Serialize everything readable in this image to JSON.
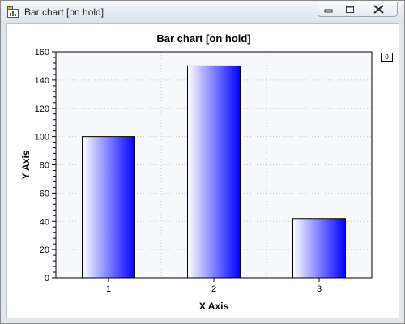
{
  "window": {
    "title": "Bar chart [on hold]",
    "controls": [
      "minimize",
      "maximize",
      "close"
    ]
  },
  "legend": {
    "label": "0"
  },
  "colors": {
    "bar_start": "#ffffff",
    "bar_end": "#0000ff",
    "plot_bg": "#f7f8fc",
    "grid": "#c8c8c8"
  },
  "chart_data": {
    "type": "bar",
    "title": "Bar chart [on hold]",
    "xlabel": "X Axis",
    "ylabel": "Y Axis",
    "categories": [
      "1",
      "2",
      "3"
    ],
    "values": [
      100,
      150,
      42
    ],
    "ylim": [
      0,
      160
    ],
    "yticks": [
      "0",
      "20",
      "40",
      "60",
      "80",
      "100",
      "120",
      "140",
      "160"
    ],
    "grid": true,
    "legend_position": "top-right"
  }
}
